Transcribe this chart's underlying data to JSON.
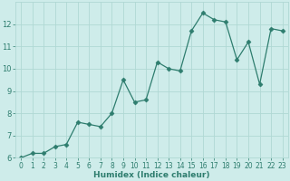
{
  "x": [
    0,
    1,
    2,
    3,
    4,
    5,
    6,
    7,
    8,
    9,
    10,
    11,
    12,
    13,
    14,
    15,
    16,
    17,
    18,
    19,
    20,
    21,
    22,
    23
  ],
  "y": [
    6.0,
    6.2,
    6.2,
    6.5,
    6.6,
    7.6,
    7.5,
    7.4,
    8.0,
    9.5,
    8.5,
    8.6,
    10.3,
    10.0,
    9.9,
    11.7,
    12.5,
    12.2,
    12.1,
    10.4,
    11.2,
    9.3,
    11.8,
    11.7
  ],
  "xlabel": "Humidex (Indice chaleur)",
  "ylim": [
    6,
    13
  ],
  "xlim": [
    -0.5,
    23.5
  ],
  "yticks": [
    6,
    7,
    8,
    9,
    10,
    11,
    12
  ],
  "xticks": [
    0,
    1,
    2,
    3,
    4,
    5,
    6,
    7,
    8,
    9,
    10,
    11,
    12,
    13,
    14,
    15,
    16,
    17,
    18,
    19,
    20,
    21,
    22,
    23
  ],
  "line_color": "#2e7d6e",
  "marker": "D",
  "markersize": 2.5,
  "linewidth": 0.9,
  "bg_color": "#ceecea",
  "grid_major_color": "#b0d8d4",
  "grid_minor_color": "#c4e8e4",
  "tick_color": "#2e7d6e",
  "label_color": "#2e7d6e",
  "xlabel_fontsize": 6.5,
  "tick_fontsize": 5.5,
  "ytick_fontsize": 6.0
}
